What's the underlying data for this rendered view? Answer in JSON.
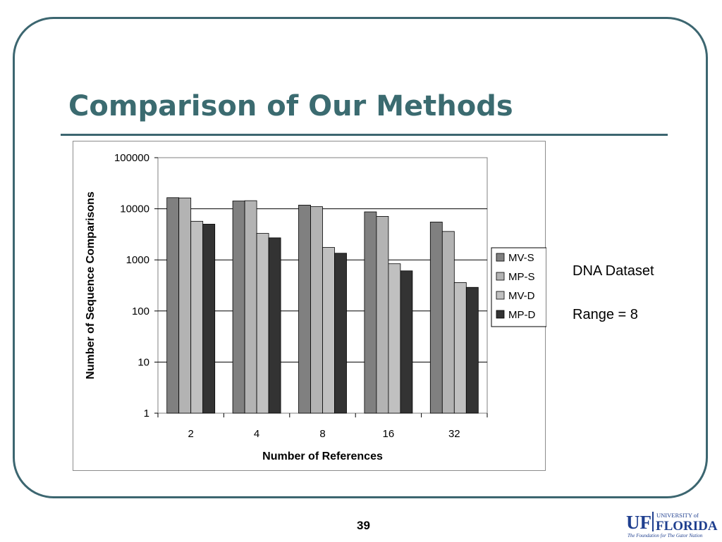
{
  "slide": {
    "title": "Comparison of Our Methods",
    "notes": [
      "DNA Dataset",
      "Range = 8"
    ],
    "page_number": "39",
    "logo": {
      "mark": "UF",
      "top": "UNIVERSITY of",
      "main": "FLORIDA",
      "tagline": "The Foundation for The Gator Nation"
    }
  },
  "colors": {
    "accent": "#3b6b70",
    "frame": "#3c6670"
  },
  "chart_data": {
    "type": "bar",
    "title": "",
    "xlabel": "Number of References",
    "ylabel": "Number of Sequence Comparisons",
    "yscale": "log",
    "ylim": [
      1,
      100000
    ],
    "yticks": [
      "1",
      "10",
      "100",
      "1000",
      "10000",
      "100000"
    ],
    "categories": [
      "2",
      "4",
      "8",
      "16",
      "32"
    ],
    "grid": "horizontal",
    "legend_position": "right",
    "series": [
      {
        "name": "MV-S",
        "color": "#808080",
        "values": [
          16500,
          14200,
          11800,
          8700,
          5500
        ]
      },
      {
        "name": "MP-S",
        "color": "#b3b3b3",
        "values": [
          16300,
          14400,
          11000,
          7100,
          3600
        ]
      },
      {
        "name": "MV-D",
        "color": "#c0c0c0",
        "values": [
          5700,
          3300,
          1750,
          840,
          360
        ]
      },
      {
        "name": "MP-D",
        "color": "#333333",
        "values": [
          5000,
          2700,
          1350,
          610,
          290
        ]
      }
    ]
  }
}
